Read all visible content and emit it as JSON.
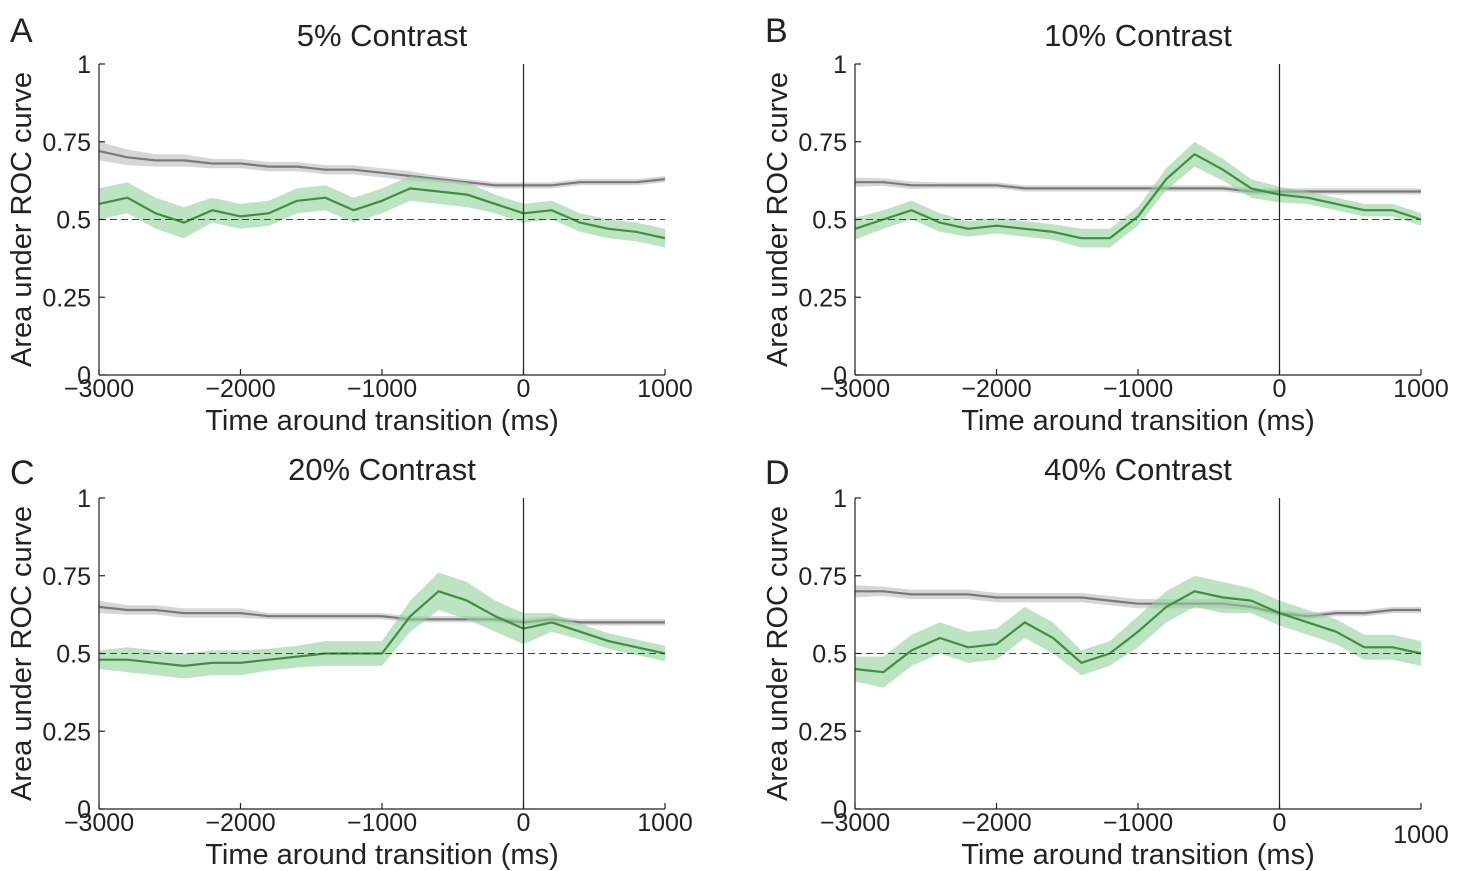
{
  "colors": {
    "green_line": "#3f8f3f",
    "green_band": "#8fd19a",
    "gray_line": "#7a7a7a",
    "gray_band": "#cfcfcf",
    "axis": "#222222",
    "dashed": "#444444"
  },
  "chart_data": [
    {
      "type": "line",
      "letter": "A",
      "title": "5% Contrast",
      "xlabel": "Time around transition (ms)",
      "ylabel": "Area under ROC curve",
      "xlim": [
        -3000,
        1000
      ],
      "ylim": [
        0,
        1
      ],
      "x_ticks": [
        -3000,
        -2000,
        -1000,
        0,
        1000
      ],
      "x_tick_labels": [
        "−3000",
        "−2000",
        "−1000",
        "0",
        "1000"
      ],
      "y_ticks": [
        0,
        0.25,
        0.5,
        0.75,
        1
      ],
      "y_tick_labels": [
        "0",
        "0.25",
        "0.5",
        "0.75",
        "1"
      ],
      "reference_lines": {
        "vertical_x": 0,
        "dashed_y": 0.5
      },
      "grid": false,
      "x": [
        -3000,
        -2800,
        -2600,
        -2400,
        -2200,
        -2000,
        -1800,
        -1600,
        -1400,
        -1200,
        -1000,
        -800,
        -600,
        -400,
        -200,
        0,
        200,
        400,
        600,
        800,
        1000
      ],
      "series": [
        {
          "values": [
            0.72,
            0.7,
            0.69,
            0.69,
            0.68,
            0.68,
            0.67,
            0.67,
            0.66,
            0.66,
            0.65,
            0.64,
            0.63,
            0.62,
            0.61,
            0.61,
            0.61,
            0.62,
            0.62,
            0.62,
            0.63
          ],
          "band_halfwidth": [
            0.03,
            0.025,
            0.02,
            0.02,
            0.015,
            0.015,
            0.015,
            0.015,
            0.015,
            0.015,
            0.015,
            0.015,
            0.01,
            0.01,
            0.01,
            0.01,
            0.01,
            0.01,
            0.01,
            0.01,
            0.01
          ]
        },
        {
          "values": [
            0.55,
            0.57,
            0.52,
            0.49,
            0.53,
            0.51,
            0.52,
            0.56,
            0.57,
            0.53,
            0.56,
            0.6,
            0.59,
            0.58,
            0.55,
            0.52,
            0.53,
            0.49,
            0.47,
            0.46,
            0.44
          ],
          "band_halfwidth": [
            0.05,
            0.05,
            0.05,
            0.05,
            0.04,
            0.04,
            0.04,
            0.04,
            0.04,
            0.04,
            0.04,
            0.04,
            0.04,
            0.04,
            0.03,
            0.03,
            0.03,
            0.03,
            0.03,
            0.03,
            0.03
          ]
        }
      ]
    },
    {
      "type": "line",
      "letter": "B",
      "title": "10% Contrast",
      "xlabel": "Time around transition (ms)",
      "ylabel": "Area under ROC curve",
      "xlim": [
        -3000,
        1000
      ],
      "ylim": [
        0,
        1
      ],
      "x_ticks": [
        -3000,
        -2000,
        -1000,
        0,
        1000
      ],
      "x_tick_labels": [
        "−3000",
        "−2000",
        "−1000",
        "0",
        "1000"
      ],
      "y_ticks": [
        0,
        0.25,
        0.5,
        0.75,
        1
      ],
      "y_tick_labels": [
        "0",
        "0.25",
        "0.5",
        "0.75",
        "1"
      ],
      "reference_lines": {
        "vertical_x": 0,
        "dashed_y": 0.5
      },
      "grid": false,
      "x": [
        -3000,
        -2800,
        -2600,
        -2400,
        -2200,
        -2000,
        -1800,
        -1600,
        -1400,
        -1200,
        -1000,
        -800,
        -600,
        -400,
        -200,
        0,
        200,
        400,
        600,
        800,
        1000
      ],
      "series": [
        {
          "values": [
            0.62,
            0.62,
            0.61,
            0.61,
            0.61,
            0.61,
            0.6,
            0.6,
            0.6,
            0.6,
            0.6,
            0.6,
            0.6,
            0.6,
            0.59,
            0.59,
            0.59,
            0.59,
            0.59,
            0.59,
            0.59
          ],
          "band_halfwidth": [
            0.015,
            0.012,
            0.012,
            0.01,
            0.01,
            0.01,
            0.01,
            0.01,
            0.01,
            0.01,
            0.01,
            0.01,
            0.01,
            0.01,
            0.01,
            0.01,
            0.01,
            0.01,
            0.01,
            0.01,
            0.01
          ]
        },
        {
          "values": [
            0.47,
            0.5,
            0.53,
            0.49,
            0.47,
            0.48,
            0.47,
            0.46,
            0.44,
            0.44,
            0.51,
            0.63,
            0.71,
            0.66,
            0.6,
            0.58,
            0.57,
            0.55,
            0.53,
            0.53,
            0.5
          ],
          "band_halfwidth": [
            0.035,
            0.03,
            0.03,
            0.03,
            0.025,
            0.025,
            0.025,
            0.025,
            0.03,
            0.03,
            0.03,
            0.035,
            0.04,
            0.035,
            0.03,
            0.025,
            0.02,
            0.02,
            0.02,
            0.02,
            0.02
          ]
        }
      ]
    },
    {
      "type": "line",
      "letter": "C",
      "title": "20% Contrast",
      "xlabel": "Time around transition (ms)",
      "ylabel": "Area under ROC curve",
      "xlim": [
        -3000,
        1000
      ],
      "ylim": [
        0,
        1
      ],
      "x_ticks": [
        -3000,
        -2000,
        -1000,
        0,
        1000
      ],
      "x_tick_labels": [
        "−3000",
        "−2000",
        "−1000",
        "0",
        "1000"
      ],
      "y_ticks": [
        0,
        0.25,
        0.5,
        0.75,
        1
      ],
      "y_tick_labels": [
        "0",
        "0.25",
        "0.5",
        "0.75",
        "1"
      ],
      "reference_lines": {
        "vertical_x": 0,
        "dashed_y": 0.5
      },
      "grid": false,
      "x": [
        -3000,
        -2800,
        -2600,
        -2400,
        -2200,
        -2000,
        -1800,
        -1600,
        -1400,
        -1200,
        -1000,
        -800,
        -600,
        -400,
        -200,
        0,
        200,
        400,
        600,
        800,
        1000
      ],
      "series": [
        {
          "values": [
            0.65,
            0.64,
            0.64,
            0.63,
            0.63,
            0.63,
            0.62,
            0.62,
            0.62,
            0.62,
            0.62,
            0.61,
            0.61,
            0.61,
            0.61,
            0.6,
            0.61,
            0.6,
            0.6,
            0.6,
            0.6
          ],
          "band_halfwidth": [
            0.02,
            0.015,
            0.015,
            0.015,
            0.015,
            0.015,
            0.01,
            0.01,
            0.01,
            0.01,
            0.01,
            0.01,
            0.01,
            0.01,
            0.01,
            0.01,
            0.01,
            0.01,
            0.01,
            0.01,
            0.01
          ]
        },
        {
          "values": [
            0.48,
            0.48,
            0.47,
            0.46,
            0.47,
            0.47,
            0.48,
            0.49,
            0.5,
            0.5,
            0.5,
            0.62,
            0.7,
            0.67,
            0.62,
            0.58,
            0.6,
            0.57,
            0.54,
            0.52,
            0.5
          ],
          "band_halfwidth": [
            0.03,
            0.04,
            0.04,
            0.04,
            0.04,
            0.04,
            0.035,
            0.035,
            0.04,
            0.04,
            0.04,
            0.05,
            0.06,
            0.06,
            0.05,
            0.05,
            0.03,
            0.025,
            0.025,
            0.025,
            0.025
          ]
        }
      ]
    },
    {
      "type": "line",
      "letter": "D",
      "title": "40% Contrast",
      "xlabel": "Time around transition (ms)",
      "ylabel": "Area under ROC curve",
      "xlim": [
        -3000,
        1000
      ],
      "ylim": [
        0,
        1
      ],
      "x_ticks": [
        -3000,
        -2000,
        -1000,
        0,
        1000
      ],
      "x_tick_labels": [
        "−3000",
        "−2000",
        "−1000",
        "0",
        "1000"
      ],
      "y_ticks": [
        0,
        0.25,
        0.5,
        0.75,
        1
      ],
      "y_tick_labels": [
        "0",
        "0.25",
        "0.5",
        "0.75",
        "1"
      ],
      "reference_lines": {
        "vertical_x": 0,
        "dashed_y": 0.5
      },
      "grid": false,
      "x": [
        -3000,
        -2800,
        -2600,
        -2400,
        -2200,
        -2000,
        -1800,
        -1600,
        -1400,
        -1200,
        -1000,
        -800,
        -600,
        -400,
        -200,
        0,
        200,
        400,
        600,
        800,
        1000
      ],
      "series": [
        {
          "values": [
            0.7,
            0.7,
            0.69,
            0.69,
            0.69,
            0.68,
            0.68,
            0.68,
            0.68,
            0.67,
            0.66,
            0.66,
            0.66,
            0.66,
            0.65,
            0.63,
            0.62,
            0.63,
            0.63,
            0.64,
            0.64
          ],
          "band_halfwidth": [
            0.02,
            0.015,
            0.015,
            0.015,
            0.015,
            0.015,
            0.015,
            0.015,
            0.015,
            0.015,
            0.015,
            0.015,
            0.015,
            0.015,
            0.01,
            0.01,
            0.01,
            0.01,
            0.01,
            0.01,
            0.01
          ]
        },
        {
          "values": [
            0.45,
            0.44,
            0.51,
            0.55,
            0.52,
            0.53,
            0.6,
            0.55,
            0.47,
            0.5,
            0.57,
            0.65,
            0.7,
            0.68,
            0.67,
            0.63,
            0.6,
            0.57,
            0.52,
            0.52,
            0.5
          ],
          "band_halfwidth": [
            0.04,
            0.05,
            0.05,
            0.05,
            0.05,
            0.05,
            0.05,
            0.05,
            0.04,
            0.04,
            0.05,
            0.05,
            0.05,
            0.05,
            0.04,
            0.04,
            0.04,
            0.04,
            0.04,
            0.04,
            0.04
          ]
        }
      ]
    }
  ]
}
